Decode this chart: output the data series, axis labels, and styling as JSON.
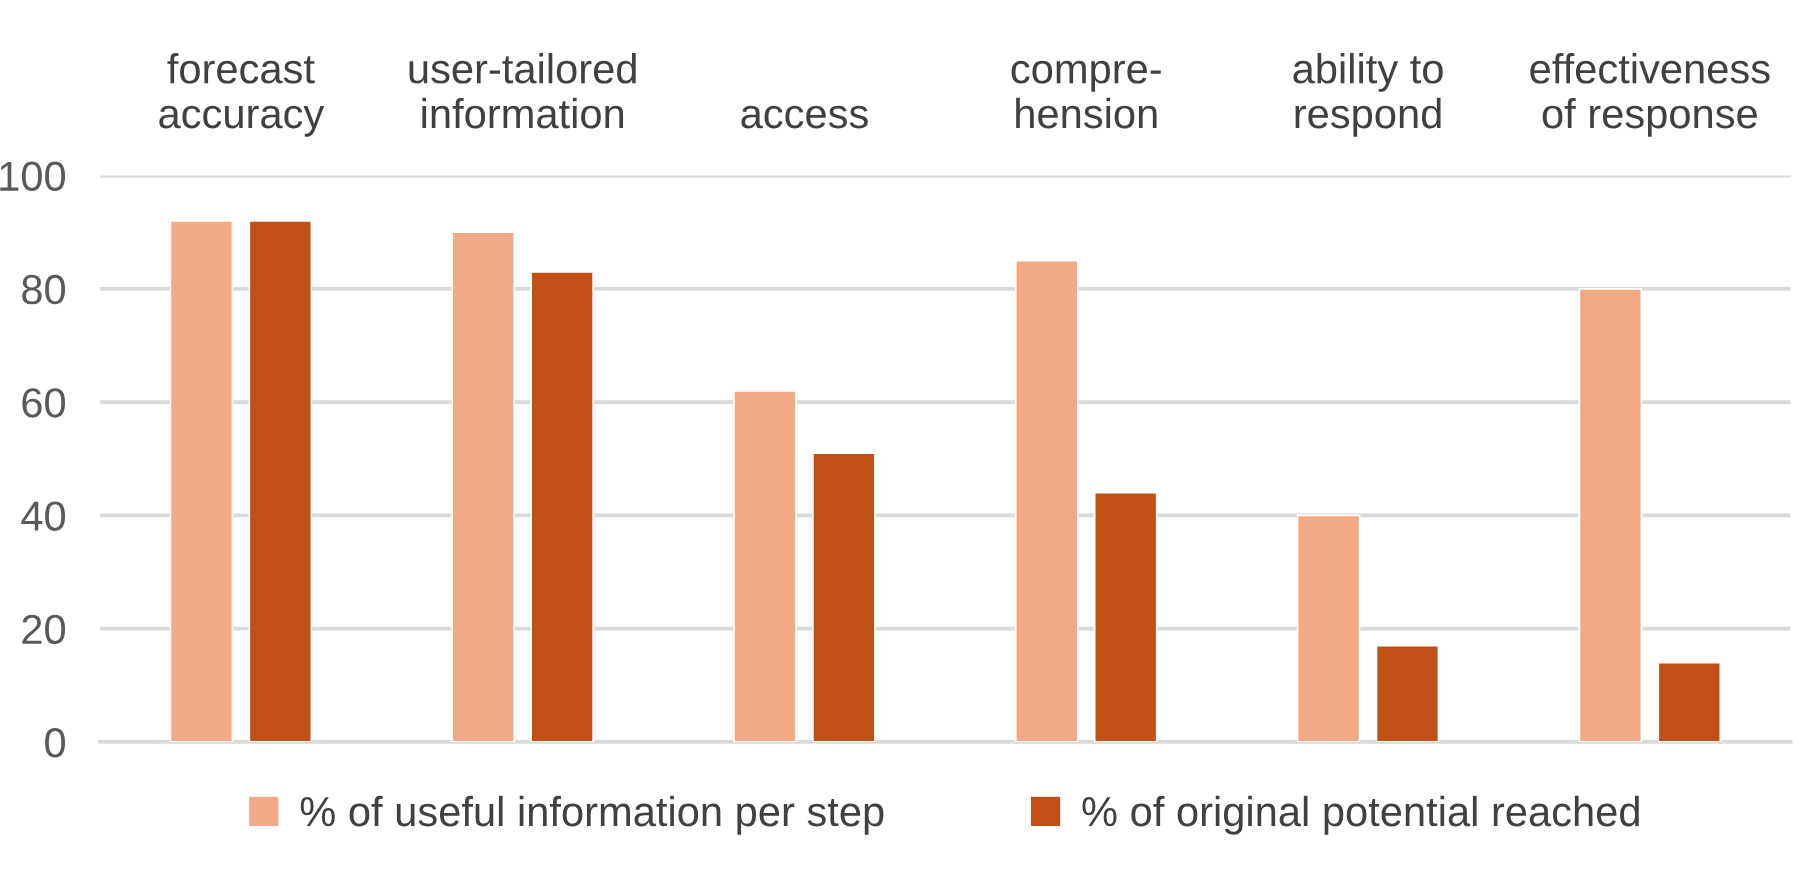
{
  "chart_data": {
    "type": "bar",
    "categories": [
      "forecast\naccuracy",
      "user-tailored\ninformation",
      "access",
      "compre-\nhension",
      "ability to\nrespond",
      "effectiveness\nof response"
    ],
    "series": [
      {
        "name": "% of useful information per step",
        "color": "#f1aa85",
        "values": [
          92,
          90,
          62,
          85,
          40,
          80
        ]
      },
      {
        "name": "% of original potential reached",
        "color": "#c05015",
        "values": [
          92,
          83,
          51,
          44,
          17,
          14
        ]
      }
    ],
    "ylim": [
      0,
      100
    ],
    "yticks": [
      0,
      20,
      40,
      60,
      80,
      100
    ],
    "grid": "y",
    "legend": "bottom"
  }
}
